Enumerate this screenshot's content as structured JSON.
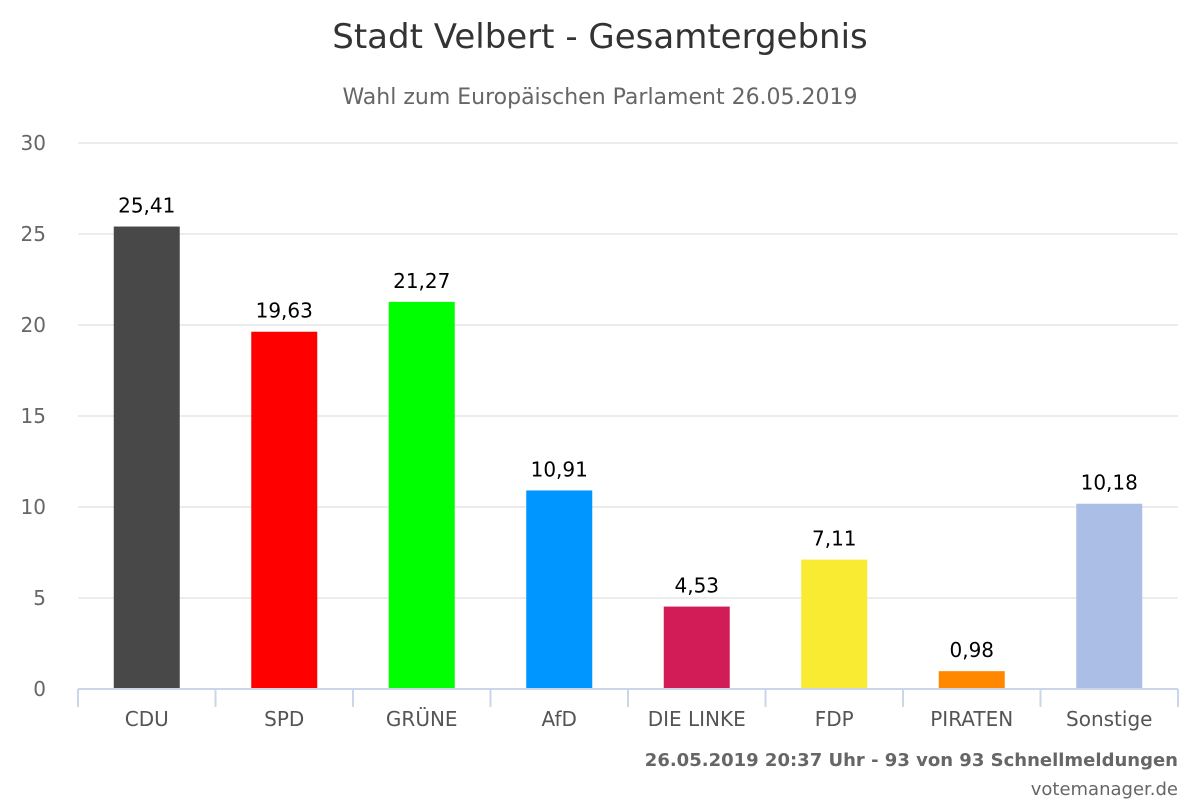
{
  "chart_data": {
    "type": "bar",
    "title": "Stadt Velbert - Gesamtergebnis",
    "subtitle": "Wahl zum Europäischen Parlament 26.05.2019",
    "categories": [
      "CDU",
      "SPD",
      "GRÜNE",
      "AfD",
      "DIE LINKE",
      "FDP",
      "PIRATEN",
      "Sonstige"
    ],
    "values": [
      25.41,
      19.63,
      21.27,
      10.91,
      4.53,
      7.11,
      0.98,
      10.18
    ],
    "value_labels": [
      "25,41",
      "19,63",
      "21,27",
      "10,91",
      "4,53",
      "7,11",
      "0,98",
      "10,18"
    ],
    "colors": [
      "#484848",
      "#ff0000",
      "#00ff00",
      "#0096ff",
      "#d11c58",
      "#f9eb32",
      "#ff8800",
      "#abbee5"
    ],
    "ylim": [
      0,
      30
    ],
    "yticks": [
      0,
      5,
      10,
      15,
      20,
      25,
      30
    ],
    "grid": true,
    "legend": "none",
    "xlabel": "",
    "ylabel": ""
  },
  "footer": {
    "timestamp": "26.05.2019 20:37 Uhr - 93 von 93 Schnellmeldungen",
    "credit": "votemanager.de"
  }
}
